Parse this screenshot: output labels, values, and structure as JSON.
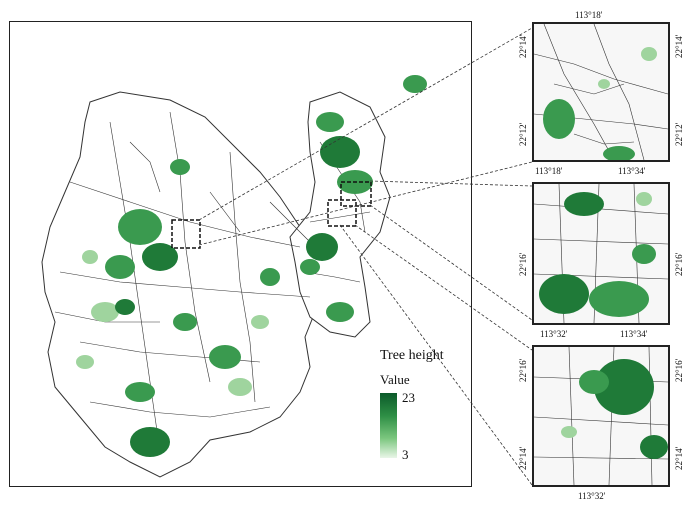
{
  "legend": {
    "title": "Tree height",
    "subtitle": "Value",
    "max": "23",
    "min": "3",
    "colors": [
      "#0b5a2a",
      "#2e8f45",
      "#7cc77f",
      "#e9f6e8"
    ]
  },
  "insets": [
    {
      "name": "inset-1",
      "top_label": "113°18'",
      "bottom_labels": [
        "113°18'",
        "113°34'"
      ],
      "left_labels": [
        "22°14'",
        "22°12'"
      ],
      "right_labels": [
        "22°14'",
        "22°12'"
      ]
    },
    {
      "name": "inset-2",
      "top_label": "",
      "bottom_labels": [
        "113°32'",
        "113°34'"
      ],
      "left_labels": [
        "22°16'"
      ],
      "right_labels": [
        "22°16'"
      ]
    },
    {
      "name": "inset-3",
      "top_label": "",
      "bottom_labels": [
        "113°32'"
      ],
      "left_labels": [
        "22°16'",
        "22°14'"
      ],
      "right_labels": [
        "22°16'",
        "22°14'"
      ]
    }
  ],
  "theme": {
    "forest_dark": "#1f7a38",
    "forest_mid": "#3a9a4f",
    "forest_light": "#9fd49e",
    "road": "#222222",
    "frame": "#222222"
  }
}
